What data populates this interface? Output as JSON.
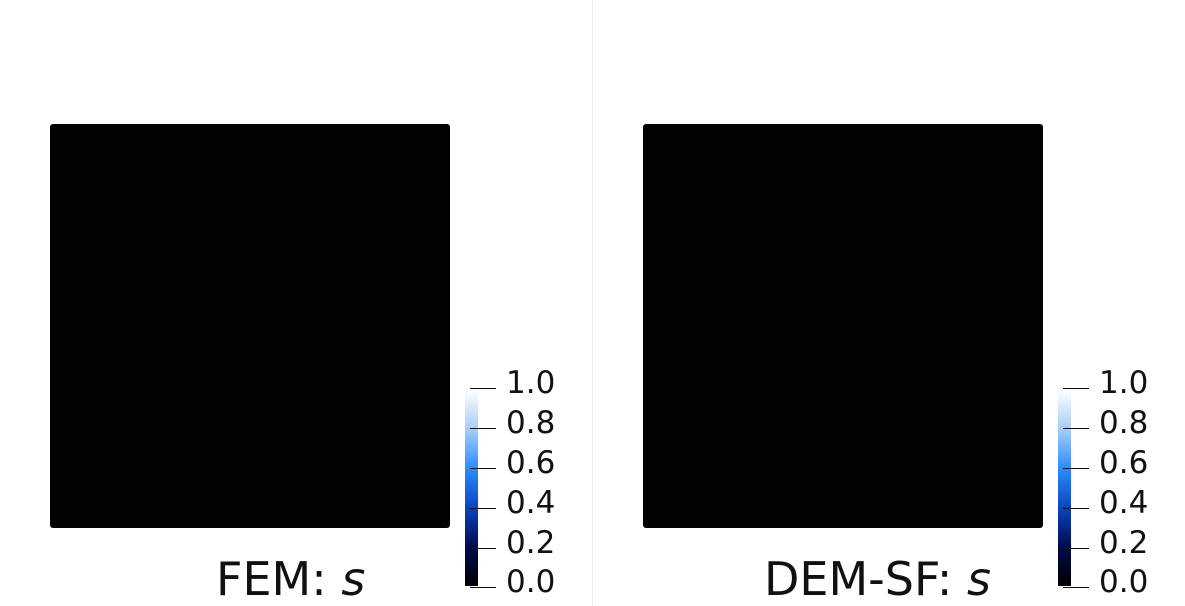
{
  "colors": {
    "field": "#020205",
    "colormap": [
      "#000000",
      "#000a4e",
      "#0a45c0",
      "#2a8cff",
      "#a6cdf8",
      "#ffffff"
    ]
  },
  "panels": [
    {
      "caption_prefix": "FEM: ",
      "caption_var": "s",
      "colorbar": {
        "min": 0.0,
        "max": 1.0,
        "tick_labels": [
          "1.0",
          "0.8",
          "0.6",
          "0.4",
          "0.2",
          "0.0"
        ]
      }
    },
    {
      "caption_prefix": "DEM-SF: ",
      "caption_var": "s",
      "colorbar": {
        "min": 0.0,
        "max": 1.0,
        "tick_labels": [
          "1.0",
          "0.8",
          "0.6",
          "0.4",
          "0.2",
          "0.0"
        ]
      }
    }
  ]
}
